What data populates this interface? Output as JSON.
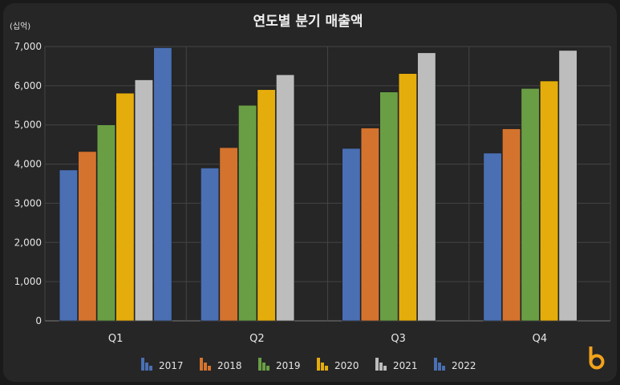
{
  "chart_data": {
    "type": "bar",
    "title": "연도별 분기 매출액",
    "unit_label": "(십억)",
    "categories": [
      "Q1",
      "Q2",
      "Q3",
      "Q4"
    ],
    "ylim": [
      0,
      7000
    ],
    "yticks": [
      0,
      1000,
      2000,
      3000,
      4000,
      5000,
      6000,
      7000
    ],
    "ytick_labels": [
      "0",
      "1,000",
      "2,000",
      "3,000",
      "4,000",
      "5,000",
      "6,000",
      "7,000"
    ],
    "grid": true,
    "legend_position": "bottom",
    "series": [
      {
        "name": "2017",
        "color": "#4a6fb3",
        "values": [
          3850,
          3900,
          4400,
          4280
        ]
      },
      {
        "name": "2018",
        "color": "#d4732e",
        "values": [
          4320,
          4420,
          4920,
          4900
        ]
      },
      {
        "name": "2019",
        "color": "#6a9e45",
        "values": [
          5000,
          5500,
          5840,
          5930
        ]
      },
      {
        "name": "2020",
        "color": "#e5ad0b",
        "values": [
          5810,
          5900,
          6310,
          6120
        ]
      },
      {
        "name": "2021",
        "color": "#bdbdbd",
        "values": [
          6150,
          6280,
          6840,
          6900
        ]
      },
      {
        "name": "2022",
        "color": "#4a6fb3",
        "values": [
          6970,
          null,
          null,
          null
        ]
      }
    ]
  },
  "logo": {
    "name": "b-logo",
    "color": "#f2a21b"
  }
}
